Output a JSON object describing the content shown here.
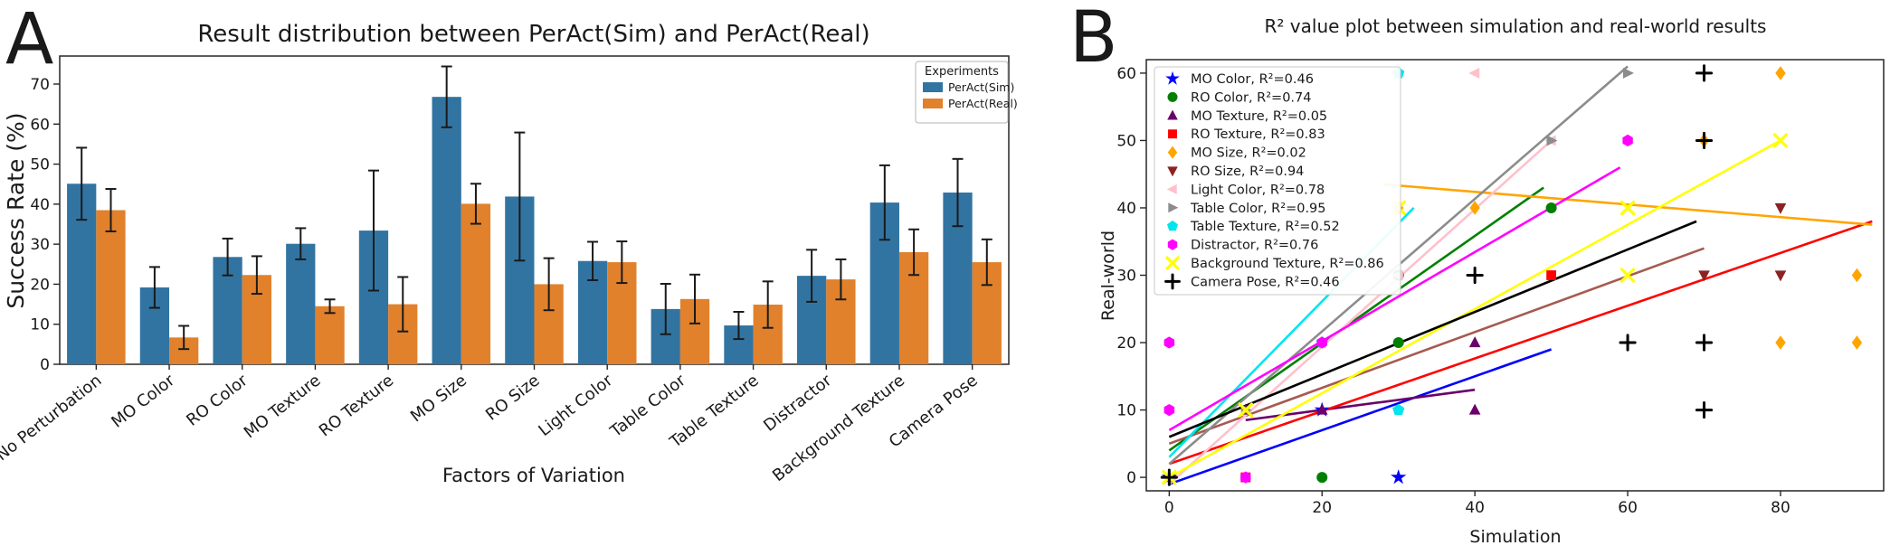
{
  "figure": {
    "background": "#ffffff",
    "error_bar_color": "#1a1a1a"
  },
  "chart_data": [
    {
      "type": "bar",
      "panel_letter": "A",
      "title": "Result distribution between PerAct(Sim) and PerAct(Real)",
      "xlabel": "Factors of Variation",
      "ylabel": "Success Rate (%)",
      "legend_title": "Experiments",
      "legend_position": "upper right",
      "ylim": [
        0,
        77
      ],
      "yticks": [
        0,
        10,
        20,
        30,
        40,
        50,
        60,
        70
      ],
      "categories": [
        "No Perturbation",
        "MO Color",
        "RO Color",
        "MO Texture",
        "RO Texture",
        "MO Size",
        "RO Size",
        "Light Color",
        "Table Color",
        "Table Texture",
        "Distractor",
        "Background Texture",
        "Camera Pose"
      ],
      "series": [
        {
          "name": "PerAct(Sim)",
          "color": "#3274a1",
          "values": [
            45.1,
            19.2,
            26.8,
            30.1,
            33.4,
            66.8,
            41.9,
            25.8,
            13.8,
            9.7,
            22.1,
            40.4,
            42.9
          ],
          "errors": [
            9.0,
            5.1,
            4.6,
            3.9,
            15.0,
            7.6,
            16.0,
            4.8,
            6.3,
            3.4,
            6.5,
            9.3,
            8.4
          ]
        },
        {
          "name": "PerAct(Real)",
          "color": "#e1812c",
          "values": [
            38.5,
            6.7,
            22.3,
            14.5,
            15.0,
            40.1,
            20.0,
            25.5,
            16.3,
            14.9,
            21.2,
            28.0,
            25.5
          ],
          "errors": [
            5.3,
            2.9,
            4.7,
            1.7,
            6.8,
            5.0,
            6.5,
            5.2,
            6.1,
            5.8,
            5.0,
            5.7,
            5.7
          ]
        }
      ]
    },
    {
      "type": "scatter",
      "panel_letter": "B",
      "title": "R² value plot between simulation and real-world results",
      "xlabel": "Simulation",
      "ylabel": "Real-world",
      "xlim": [
        -3,
        93.5
      ],
      "ylim": [
        -2,
        62
      ],
      "xticks": [
        0,
        20,
        40,
        60,
        80
      ],
      "yticks": [
        0,
        10,
        20,
        30,
        40,
        50,
        60
      ],
      "legend_position": "upper left",
      "series": [
        {
          "name": "MO Color",
          "label": "MO Color, R²=0.46",
          "r2": 0.46,
          "color": "#0000ff",
          "marker": "star",
          "points": [
            [
              0,
              0
            ],
            [
              20,
              10
            ],
            [
              30,
              0
            ]
          ],
          "trend": [
            0,
            -1,
            50,
            19
          ]
        },
        {
          "name": "RO Color",
          "label": "RO Color, R²=0.74",
          "r2": 0.74,
          "color": "#008000",
          "marker": "circle",
          "points": [
            [
              20,
              0
            ],
            [
              30,
              20
            ],
            [
              30,
              30
            ],
            [
              50,
              40
            ]
          ],
          "trend": [
            0,
            4,
            49,
            43
          ]
        },
        {
          "name": "MO Texture",
          "label": "MO Texture, R²=0.05",
          "r2": 0.05,
          "color": "#6b006b",
          "marker": "triangle-up",
          "points": [
            [
              10,
              10
            ],
            [
              20,
              10
            ],
            [
              40,
              10
            ],
            [
              40,
              20
            ]
          ],
          "trend": [
            10,
            8.5,
            40,
            13
          ]
        },
        {
          "name": "RO Texture",
          "label": "RO Texture, R²=0.83",
          "r2": 0.83,
          "color": "#ff0000",
          "marker": "square",
          "points": [
            [
              10,
              0
            ],
            [
              50,
              30
            ]
          ],
          "trend": [
            0,
            2,
            92,
            38
          ]
        },
        {
          "name": "MO Size",
          "label": "MO Size, R²=0.02",
          "r2": 0.02,
          "color": "#ffa500",
          "marker": "diamond",
          "points": [
            [
              30,
              40
            ],
            [
              40,
              40
            ],
            [
              70,
              50
            ],
            [
              80,
              60
            ],
            [
              80,
              20
            ],
            [
              90,
              20
            ],
            [
              90,
              30
            ]
          ],
          "trend": [
            28,
            43.5,
            92,
            37.5
          ]
        },
        {
          "name": "RO Size",
          "label": "RO Size, R²=0.94",
          "r2": 0.94,
          "color": "#8b2323",
          "marker": "triangle-down",
          "line_color": "#a65a50",
          "points": [
            [
              70,
              30
            ],
            [
              80,
              30
            ],
            [
              80,
              40
            ]
          ],
          "trend": [
            0,
            5,
            70,
            34
          ]
        },
        {
          "name": "Light Color",
          "label": "Light Color, R²=0.78",
          "r2": 0.78,
          "color": "#ffc0cb",
          "marker": "triangle-left",
          "points": [
            [
              30,
              30
            ],
            [
              40,
              60
            ],
            [
              50,
              50
            ]
          ],
          "trend": [
            0,
            -1,
            50,
            50
          ]
        },
        {
          "name": "Table Color",
          "label": "Table Color, R²=0.95",
          "r2": 0.95,
          "color": "#8c8c8c",
          "marker": "triangle-right",
          "points": [
            [
              10,
              10
            ],
            [
              50,
              50
            ],
            [
              60,
              60
            ]
          ],
          "trend": [
            0,
            2,
            60,
            61
          ]
        },
        {
          "name": "Table Texture",
          "label": "Table Texture, R²=0.52",
          "r2": 0.52,
          "color": "#00e5ee",
          "marker": "pentagon",
          "points": [
            [
              20,
              20
            ],
            [
              30,
              10
            ],
            [
              30,
              60
            ]
          ],
          "trend": [
            0,
            3,
            32,
            40
          ]
        },
        {
          "name": "Distractor",
          "label": "Distractor, R²=0.76",
          "r2": 0.76,
          "color": "#ff00ff",
          "marker": "hexagon",
          "points": [
            [
              0,
              10
            ],
            [
              0,
              20
            ],
            [
              10,
              0
            ],
            [
              20,
              20
            ],
            [
              60,
              50
            ]
          ],
          "trend": [
            0,
            7,
            59,
            46
          ]
        },
        {
          "name": "Background Texture",
          "label": "Background Texture, R²=0.86",
          "r2": 0.86,
          "color": "#ffff00",
          "marker": "x",
          "points": [
            [
              0,
              0
            ],
            [
              10,
              10
            ],
            [
              30,
              40
            ],
            [
              60,
              30
            ],
            [
              60,
              40
            ],
            [
              80,
              50
            ]
          ],
          "trend": [
            0,
            0,
            80,
            50
          ]
        },
        {
          "name": "Camera Pose",
          "label": "Camera Pose, R²=0.46",
          "r2": 0.46,
          "color": "#000000",
          "marker": "plus",
          "points": [
            [
              0,
              0
            ],
            [
              40,
              30
            ],
            [
              60,
              20
            ],
            [
              70,
              10
            ],
            [
              70,
              20
            ],
            [
              70,
              50
            ],
            [
              70,
              60
            ]
          ],
          "trend": [
            0,
            6,
            69,
            38
          ]
        }
      ]
    }
  ]
}
